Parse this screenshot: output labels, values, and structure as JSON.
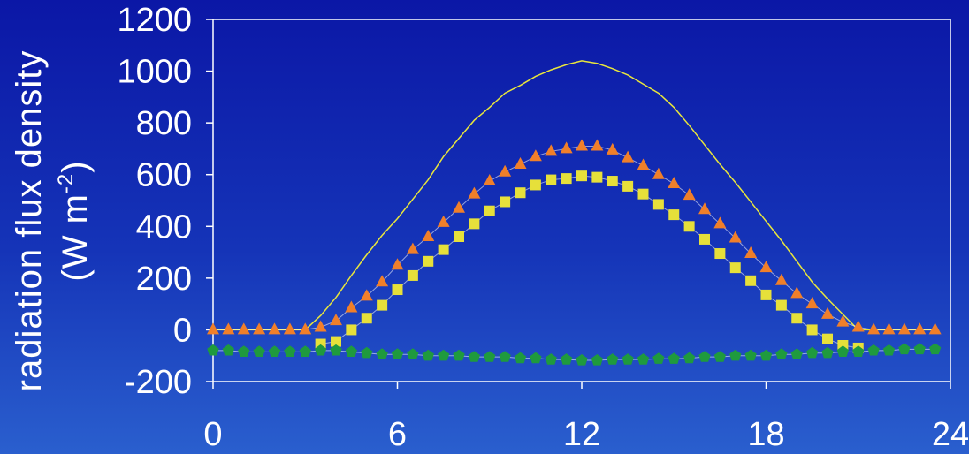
{
  "chart_data": {
    "type": "line",
    "title": "",
    "xlabel": "",
    "ylabel": "radiation flux density",
    "ylabel_units": {
      "prefix": "(W m",
      "exponent": "-2",
      "suffix": ")"
    },
    "xlim": [
      0,
      24
    ],
    "ylim": [
      -200,
      1200
    ],
    "xticks": [
      0,
      6,
      12,
      18,
      24
    ],
    "yticks": [
      -200,
      0,
      200,
      400,
      600,
      800,
      1000,
      1200
    ],
    "grid": false,
    "legend": "none",
    "series": [
      {
        "marker": "none",
        "color": "#e9e63c",
        "x": [
          0,
          0.5,
          1,
          1.5,
          2,
          2.5,
          3,
          3.5,
          4,
          4.5,
          5,
          5.5,
          6,
          6.5,
          7,
          7.5,
          8,
          8.5,
          9,
          9.5,
          10,
          10.5,
          11,
          11.5,
          12,
          12.5,
          13,
          13.5,
          14,
          14.5,
          15,
          15.5,
          16,
          16.5,
          17,
          17.5,
          18,
          18.5,
          19,
          19.5,
          20,
          20.5,
          21,
          21.5,
          22,
          22.5,
          23,
          23.5
        ],
        "y": [
          0,
          0,
          0,
          0,
          0,
          0,
          0,
          55,
          125,
          210,
          290,
          365,
          430,
          505,
          580,
          670,
          740,
          810,
          860,
          915,
          945,
          980,
          1005,
          1025,
          1040,
          1030,
          1010,
          985,
          950,
          915,
          860,
          790,
          715,
          640,
          570,
          495,
          420,
          345,
          265,
          185,
          120,
          60,
          0,
          0,
          0,
          0,
          0,
          0
        ]
      },
      {
        "marker": "triangle",
        "color": "#f07f2a",
        "x": [
          0,
          0.5,
          1,
          1.5,
          2,
          2.5,
          3,
          3.5,
          4,
          4.5,
          5,
          5.5,
          6,
          6.5,
          7,
          7.5,
          8,
          8.5,
          9,
          9.5,
          10,
          10.5,
          11,
          11.5,
          12,
          12.5,
          13,
          13.5,
          14,
          14.5,
          15,
          15.5,
          16,
          16.5,
          17,
          17.5,
          18,
          18.5,
          19,
          19.5,
          20,
          20.5,
          21,
          21.5,
          22,
          22.5,
          23,
          23.5
        ],
        "y": [
          0,
          0,
          0,
          0,
          0,
          0,
          0,
          10,
          35,
          85,
          130,
          185,
          250,
          310,
          360,
          415,
          470,
          525,
          575,
          610,
          640,
          670,
          690,
          700,
          710,
          710,
          695,
          665,
          635,
          600,
          565,
          520,
          465,
          410,
          355,
          295,
          240,
          190,
          140,
          100,
          60,
          30,
          10,
          0,
          0,
          0,
          0,
          0
        ]
      },
      {
        "marker": "square",
        "color": "#e6e03a",
        "x": [
          3.5,
          4,
          4.5,
          5,
          5.5,
          6,
          6.5,
          7,
          7.5,
          8,
          8.5,
          9,
          9.5,
          10,
          10.5,
          11,
          11.5,
          12,
          12.5,
          13,
          13.5,
          14,
          14.5,
          15,
          15.5,
          16,
          16.5,
          17,
          17.5,
          18,
          18.5,
          19,
          19.5,
          20,
          20.5,
          21
        ],
        "y": [
          -55,
          -45,
          0,
          45,
          95,
          155,
          210,
          265,
          310,
          360,
          410,
          460,
          495,
          530,
          560,
          580,
          585,
          595,
          590,
          575,
          555,
          525,
          485,
          445,
          400,
          350,
          295,
          240,
          190,
          135,
          95,
          45,
          0,
          -35,
          -60,
          -70
        ]
      },
      {
        "marker": "pentagon",
        "color": "#1f9a3e",
        "x": [
          0,
          0.5,
          1,
          1.5,
          2,
          2.5,
          3,
          3.5,
          4,
          4.5,
          5,
          5.5,
          6,
          6.5,
          7,
          7.5,
          8,
          8.5,
          9,
          9.5,
          10,
          10.5,
          11,
          11.5,
          12,
          12.5,
          13,
          13.5,
          14,
          14.5,
          15,
          15.5,
          16,
          16.5,
          17,
          17.5,
          18,
          18.5,
          19,
          19.5,
          20,
          20.5,
          21,
          21.5,
          22,
          22.5,
          23,
          23.5
        ],
        "y": [
          -80,
          -80,
          -85,
          -85,
          -85,
          -85,
          -85,
          -80,
          -80,
          -85,
          -90,
          -95,
          -95,
          -95,
          -100,
          -100,
          -100,
          -105,
          -105,
          -105,
          -110,
          -110,
          -115,
          -115,
          -118,
          -118,
          -115,
          -115,
          -115,
          -112,
          -112,
          -110,
          -105,
          -105,
          -100,
          -100,
          -100,
          -95,
          -95,
          -90,
          -90,
          -85,
          -85,
          -80,
          -80,
          -75,
          -75,
          -75
        ]
      }
    ]
  }
}
